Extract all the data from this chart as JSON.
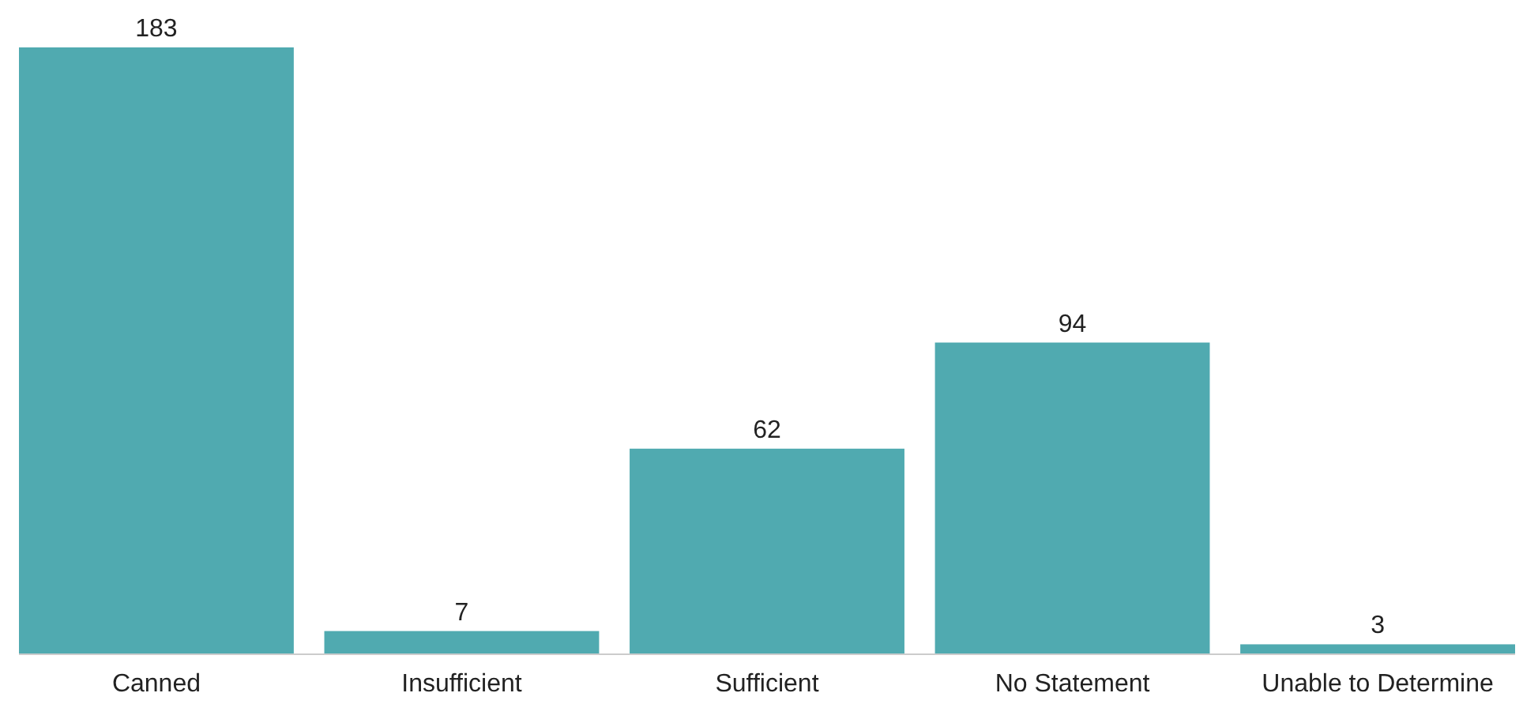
{
  "chart_data": {
    "type": "bar",
    "categories": [
      "Canned",
      "Insufficient",
      "Sufficient",
      "No Statement",
      "Unable to Determine"
    ],
    "values": [
      183,
      7,
      62,
      94,
      3
    ],
    "color": "#50aab0",
    "data_labels": true,
    "grid": false
  }
}
